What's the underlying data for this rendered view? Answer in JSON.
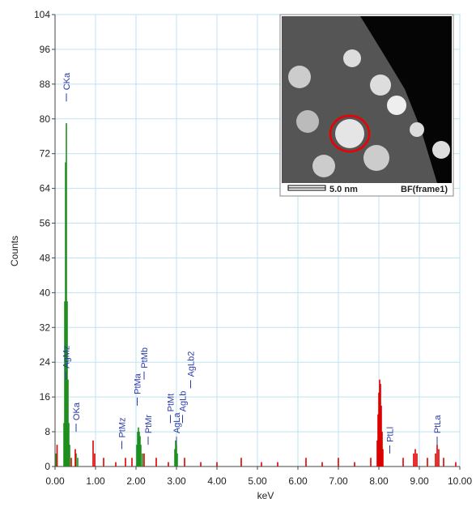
{
  "chart_data": {
    "type": "spectrum",
    "xlabel": "keV",
    "ylabel": "Counts",
    "xlim": [
      0,
      10
    ],
    "ylim": [
      0,
      104
    ],
    "xticks": [
      {
        "value": 0,
        "label": "0.00"
      },
      {
        "value": 1,
        "label": "1.00"
      },
      {
        "value": 2,
        "label": "2.00"
      },
      {
        "value": 3,
        "label": "3.00"
      },
      {
        "value": 4,
        "label": "4.00"
      },
      {
        "value": 5,
        "label": "5.00"
      },
      {
        "value": 6,
        "label": "6.00"
      },
      {
        "value": 7,
        "label": "7.00"
      },
      {
        "value": 8,
        "label": "8.00"
      },
      {
        "value": 9,
        "label": "9.00"
      },
      {
        "value": 10,
        "label": "10.00"
      }
    ],
    "yticks": [
      0,
      8,
      16,
      24,
      32,
      40,
      48,
      56,
      64,
      72,
      80,
      88,
      96,
      104
    ],
    "grid": true,
    "series": [
      {
        "color": "#1f8f1f",
        "x": [
          0.02,
          0.22,
          0.24,
          0.26,
          0.28,
          0.3,
          0.32,
          0.34,
          0.36,
          0.52,
          0.56,
          2.02,
          2.04,
          2.06,
          2.08,
          2.1,
          2.12,
          2.16,
          2.96,
          2.98,
          3.0,
          3.02
        ],
        "values": [
          3,
          10,
          38,
          70,
          79,
          38,
          20,
          10,
          5,
          3,
          2,
          5,
          8,
          9,
          8,
          7,
          5,
          3,
          4,
          6,
          5,
          3
        ]
      },
      {
        "color": "#dd0000",
        "x": [
          0.05,
          0.4,
          0.5,
          0.94,
          0.98,
          1.2,
          1.5,
          1.74,
          1.9,
          2.2,
          2.5,
          2.8,
          3.2,
          3.6,
          4.0,
          4.6,
          5.1,
          5.5,
          6.2,
          6.6,
          7.0,
          7.4,
          7.8,
          7.96,
          7.98,
          8.0,
          8.02,
          8.04,
          8.06,
          8.08,
          8.1,
          8.6,
          8.86,
          8.9,
          8.94,
          9.2,
          9.4,
          9.44,
          9.48,
          9.6,
          9.9
        ],
        "values": [
          5,
          2,
          4,
          6,
          3,
          2,
          1,
          2,
          2,
          3,
          2,
          1,
          2,
          1,
          1,
          2,
          1,
          1,
          2,
          1,
          2,
          1,
          2,
          6,
          12,
          17,
          20,
          19,
          14,
          8,
          4,
          2,
          3,
          4,
          3,
          2,
          3,
          5,
          4,
          2,
          1
        ]
      }
    ],
    "annotations": [
      {
        "text": "CKa",
        "x": 0.28,
        "y": 84
      },
      {
        "text": "AgMz",
        "x": 0.27,
        "y": 20
      },
      {
        "text": "OKa",
        "x": 0.52,
        "y": 8
      },
      {
        "text": "PtMz",
        "x": 1.65,
        "y": 4
      },
      {
        "text": "PtMa",
        "x": 2.03,
        "y": 14
      },
      {
        "text": "PtMb",
        "x": 2.2,
        "y": 20
      },
      {
        "text": "PtMr",
        "x": 2.3,
        "y": 5
      },
      {
        "text": "PtMt",
        "x": 2.85,
        "y": 10
      },
      {
        "text": "AgLa",
        "x": 3.0,
        "y": 5
      },
      {
        "text": "AgLb",
        "x": 3.15,
        "y": 10
      },
      {
        "text": "AgLb2",
        "x": 3.35,
        "y": 18
      },
      {
        "text": "PtLl",
        "x": 8.27,
        "y": 3
      },
      {
        "text": "PtLa",
        "x": 9.44,
        "y": 5
      }
    ]
  },
  "inset": {
    "scale_label": "5.0 nm",
    "caption": "BF(frame1)"
  }
}
